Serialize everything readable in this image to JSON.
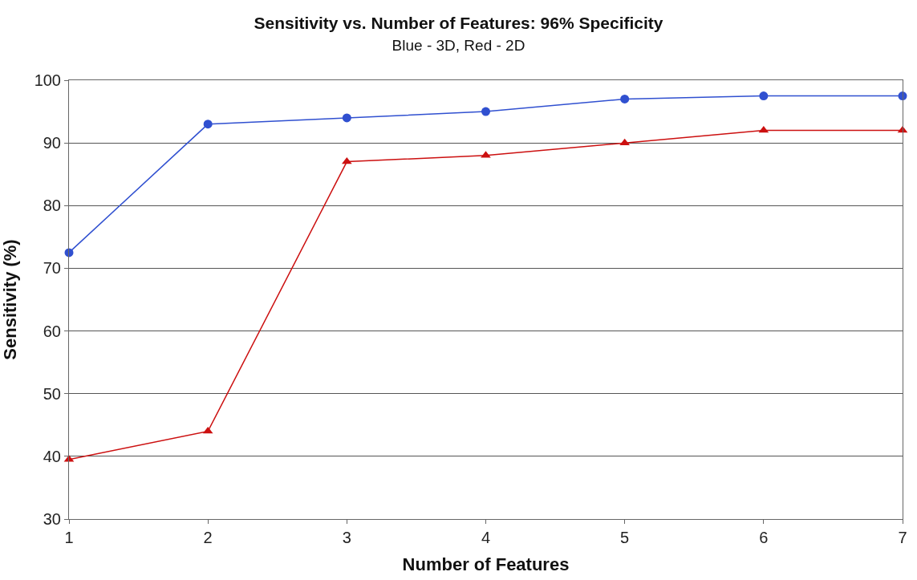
{
  "chart_data": {
    "type": "line",
    "title": "Sensitivity vs. Number of Features: 96% Specificity",
    "subtitle": "Blue - 3D, Red - 2D",
    "xlabel": "Number of Features",
    "ylabel": "Sensitivity (%)",
    "x": [
      1,
      2,
      3,
      4,
      5,
      6,
      7
    ],
    "series": [
      {
        "color": "#3050d0",
        "marker": "circle",
        "values": [
          72.5,
          93,
          94,
          95,
          97,
          97.5,
          97.5
        ]
      },
      {
        "color": "#cc1010",
        "marker": "triangle",
        "values": [
          39.5,
          44,
          87,
          88,
          90,
          92,
          92
        ]
      }
    ],
    "xlim": [
      1,
      7
    ],
    "xticks": [
      1,
      2,
      3,
      4,
      5,
      6,
      7
    ],
    "ylim": [
      30,
      100
    ],
    "yticks": [
      30,
      40,
      50,
      60,
      70,
      80,
      90,
      100
    ],
    "grid": "y",
    "line_style": "solid"
  }
}
